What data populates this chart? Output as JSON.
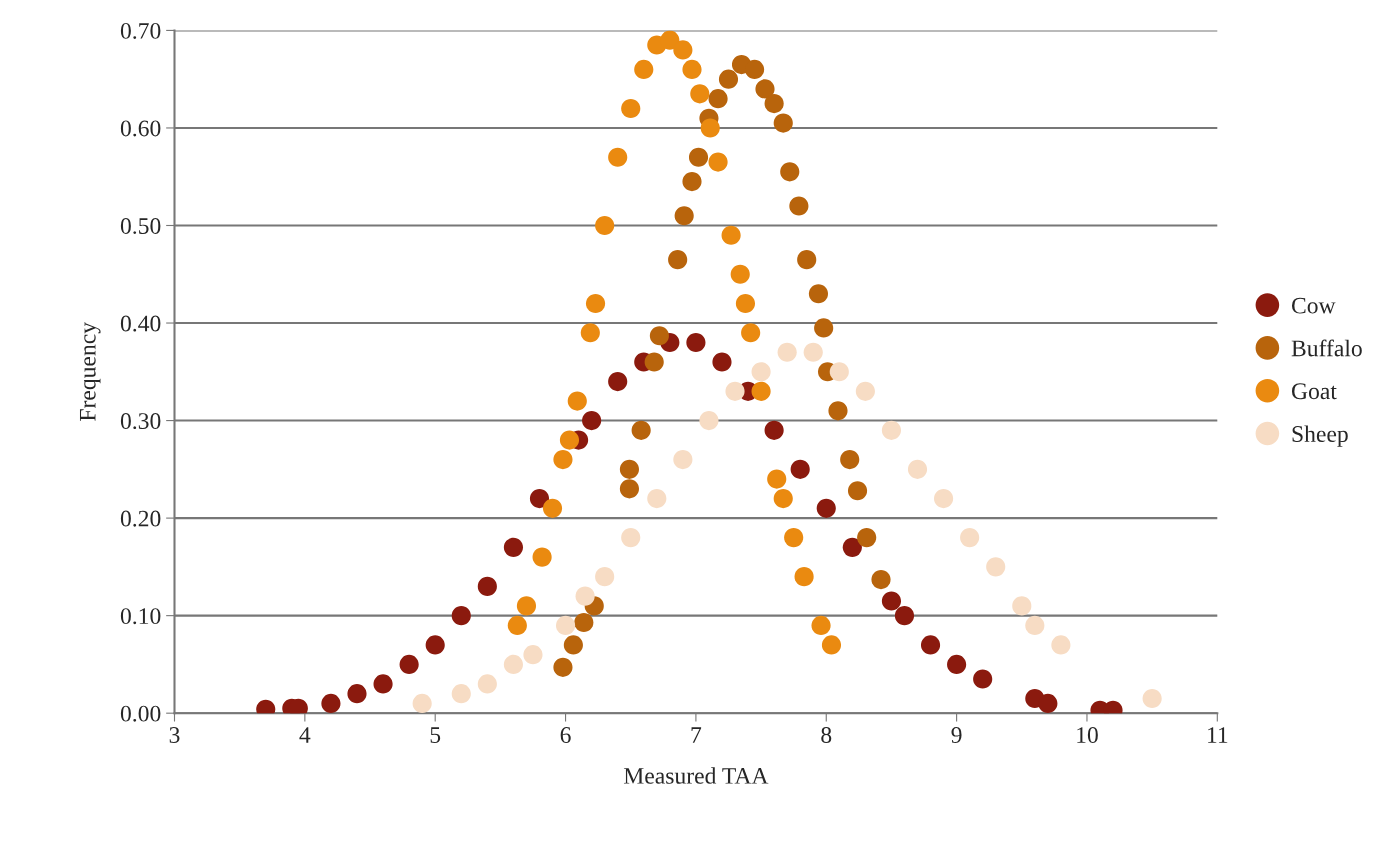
{
  "chart_data": {
    "type": "scatter",
    "xlabel": "Measured TAA",
    "ylabel": "Frequency",
    "xlim": [
      3,
      11
    ],
    "xticks": [
      3,
      4,
      5,
      6,
      7,
      8,
      9,
      10,
      11
    ],
    "ylim": [
      0,
      0.7
    ],
    "yticks": [
      {
        "value": 0,
        "label": "0.00"
      },
      {
        "value": 0.1,
        "label": "0.10"
      },
      {
        "value": 0.2,
        "label": "0.20"
      },
      {
        "value": 0.3,
        "label": "0.30"
      },
      {
        "value": 0.4,
        "label": "0.40"
      },
      {
        "value": 0.5,
        "label": "0.50"
      },
      {
        "value": 0.6,
        "label": "0.60"
      },
      {
        "value": 0.7,
        "label": "0.70"
      }
    ],
    "grid": "y",
    "legend": "right",
    "marker": "circle",
    "series": [
      {
        "name": "Cow",
        "color": "#8b1a0e",
        "x": [
          3.7,
          3.9,
          3.95,
          4.2,
          4.4,
          4.6,
          4.8,
          5.0,
          5.2,
          5.4,
          5.6,
          5.8,
          6.1,
          6.2,
          6.4,
          6.6,
          6.8,
          7.0,
          7.2,
          7.4,
          7.6,
          7.8,
          8.0,
          8.2,
          8.5,
          8.6,
          8.8,
          9.0,
          9.2,
          9.6,
          9.7,
          10.1,
          10.2
        ],
        "values": [
          0.004,
          0.005,
          0.005,
          0.01,
          0.02,
          0.03,
          0.05,
          0.07,
          0.1,
          0.13,
          0.17,
          0.22,
          0.28,
          0.3,
          0.34,
          0.36,
          0.38,
          0.38,
          0.36,
          0.33,
          0.29,
          0.25,
          0.21,
          0.17,
          0.115,
          0.1,
          0.07,
          0.05,
          0.035,
          0.015,
          0.01,
          0.003,
          0.003
        ]
      },
      {
        "name": "Buffalo",
        "color": "#b8640c",
        "x": [
          5.98,
          6.06,
          6.14,
          6.22,
          6.49,
          6.49,
          6.58,
          6.68,
          6.72,
          6.86,
          6.91,
          6.97,
          7.02,
          7.1,
          7.17,
          7.25,
          7.35,
          7.45,
          7.53,
          7.6,
          7.67,
          7.72,
          7.79,
          7.85,
          7.94,
          7.98,
          8.01,
          8.09,
          8.18,
          8.24,
          8.31,
          8.42
        ],
        "values": [
          0.047,
          0.07,
          0.093,
          0.11,
          0.23,
          0.25,
          0.29,
          0.36,
          0.387,
          0.465,
          0.51,
          0.545,
          0.57,
          0.61,
          0.63,
          0.65,
          0.665,
          0.66,
          0.64,
          0.625,
          0.605,
          0.555,
          0.52,
          0.465,
          0.43,
          0.395,
          0.35,
          0.31,
          0.26,
          0.228,
          0.18,
          0.137
        ]
      },
      {
        "name": "Goat",
        "color": "#ea8a10",
        "x": [
          5.63,
          5.7,
          5.82,
          5.9,
          5.98,
          6.03,
          6.09,
          6.19,
          6.23,
          6.3,
          6.4,
          6.5,
          6.6,
          6.7,
          6.8,
          6.9,
          6.97,
          7.03,
          7.11,
          7.17,
          7.27,
          7.34,
          7.38,
          7.42,
          7.5,
          7.62,
          7.67,
          7.75,
          7.83,
          7.96,
          8.04
        ],
        "values": [
          0.09,
          0.11,
          0.16,
          0.21,
          0.26,
          0.28,
          0.32,
          0.39,
          0.42,
          0.5,
          0.57,
          0.62,
          0.66,
          0.685,
          0.69,
          0.68,
          0.66,
          0.635,
          0.6,
          0.565,
          0.49,
          0.45,
          0.42,
          0.39,
          0.33,
          0.24,
          0.22,
          0.18,
          0.14,
          0.09,
          0.07
        ]
      },
      {
        "name": "Sheep",
        "color": "#f7dcc4",
        "x": [
          4.9,
          5.2,
          5.4,
          5.6,
          5.75,
          6.0,
          6.15,
          6.3,
          6.5,
          6.7,
          6.9,
          7.1,
          7.3,
          7.5,
          7.7,
          7.9,
          8.1,
          8.3,
          8.5,
          8.7,
          8.9,
          9.1,
          9.3,
          9.5,
          9.6,
          9.8,
          10.5
        ],
        "values": [
          0.01,
          0.02,
          0.03,
          0.05,
          0.06,
          0.09,
          0.12,
          0.14,
          0.18,
          0.22,
          0.26,
          0.3,
          0.33,
          0.35,
          0.37,
          0.37,
          0.35,
          0.33,
          0.29,
          0.25,
          0.22,
          0.18,
          0.15,
          0.11,
          0.09,
          0.07,
          0.015
        ]
      }
    ]
  }
}
